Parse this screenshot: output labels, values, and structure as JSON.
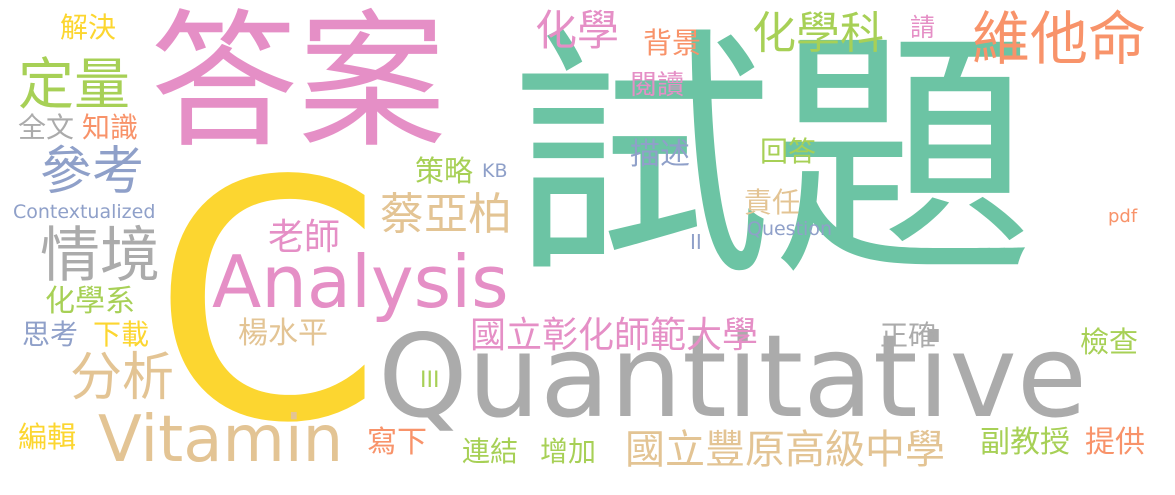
{
  "palette": {
    "teal": "#6cc4a4",
    "pink": "#e58fc6",
    "yellow": "#fcd630",
    "grey": "#ababab",
    "tan": "#e3c494",
    "green": "#a7d056",
    "orange": "#f8936a",
    "blue": "#8fa0c9"
  },
  "words": {
    "w01": "試題",
    "w02": "答案",
    "w03": "C",
    "w04": "Quantitative",
    "w05": "Analysis",
    "w06": "Vitamin",
    "w07": "維他命",
    "w08": "化學科",
    "w09": "化學",
    "w10": "背景",
    "w11": "閱讀",
    "w12": "請",
    "w13": "解決",
    "w14": "定量",
    "w15": "全文",
    "w16": "知識",
    "w17": "參考",
    "w18": "Contextualized",
    "w19": "情境",
    "w20": "化學系",
    "w21": "思考",
    "w22": "下載",
    "w23": "分析",
    "w24": "編輯",
    "w25": "老師",
    "w26": "蔡亞柏",
    "w27": "策略",
    "w28": "KB",
    "w29": "描述",
    "w30": "回答",
    "w31": "責任",
    "w32": "Question",
    "w33": "II",
    "w34": "pdf",
    "w35": "楊水平",
    "w36": "國立彰化師範大學",
    "w37": "正確",
    "w38": "檢查",
    "w39": "III",
    "w40": "寫下",
    "w41": "連結",
    "w42": "增加",
    "w43": "國立豐原高級中學",
    "w44": "副教授",
    "w45": "提供"
  }
}
